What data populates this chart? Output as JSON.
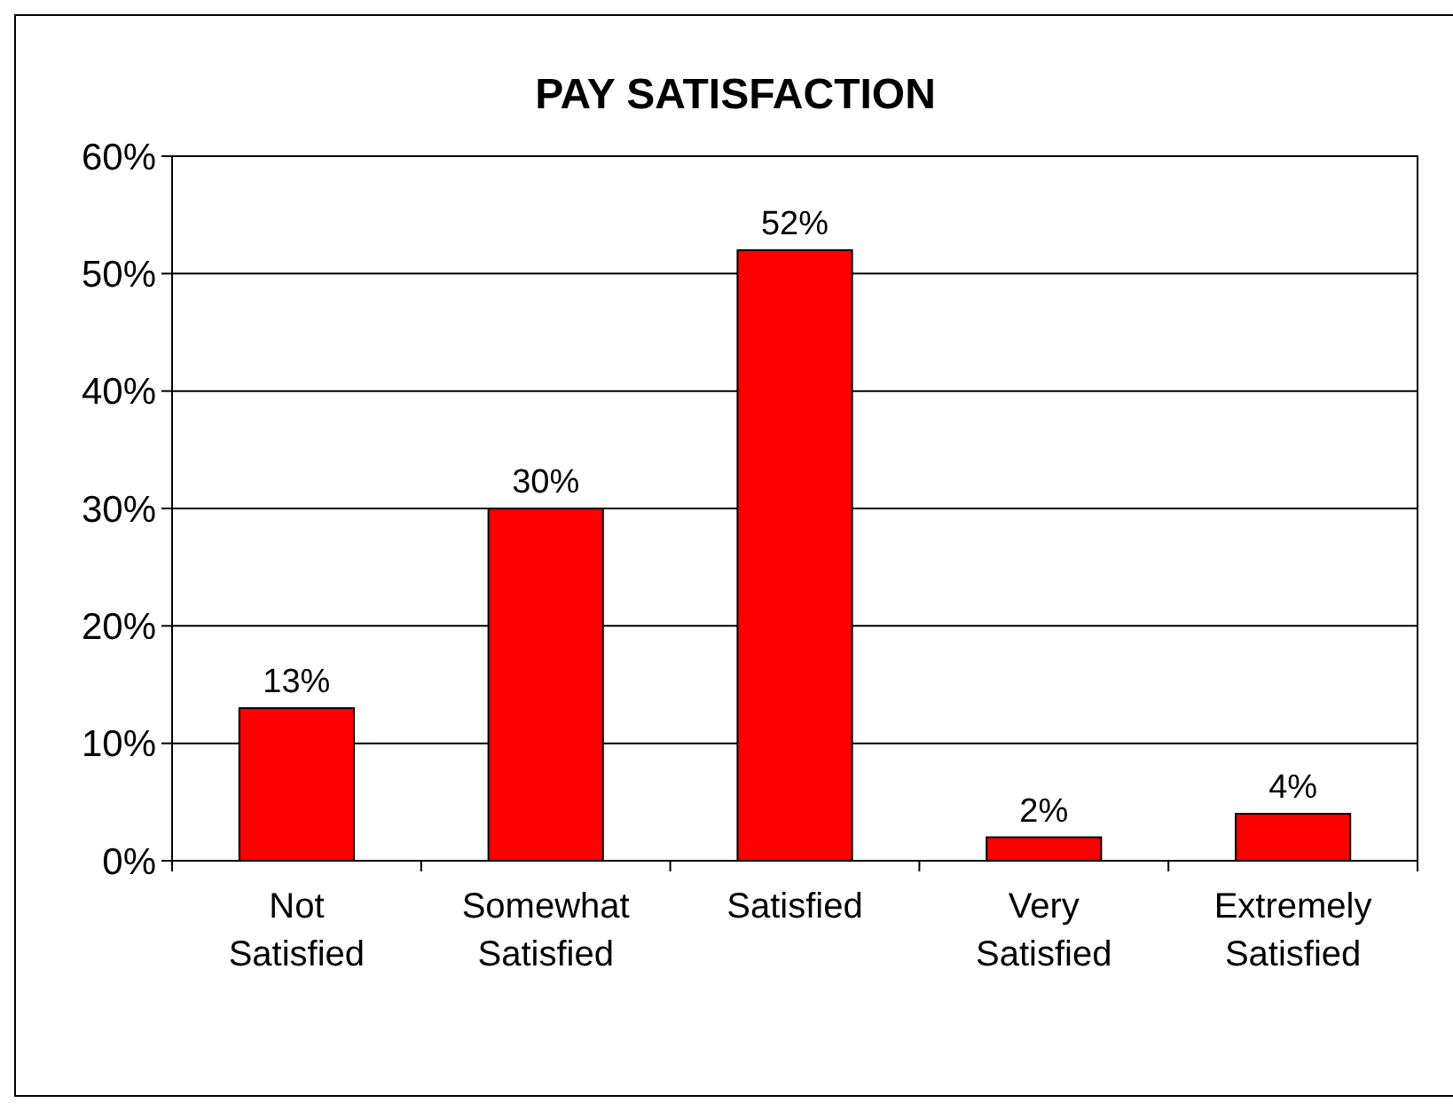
{
  "chart_data": {
    "type": "bar",
    "title": "PAY SATISFACTION",
    "categories": [
      "Not Satisfied",
      "Somewhat Satisfied",
      "Satisfied",
      "Very Satisfied",
      "Extremely Satisfied"
    ],
    "values": [
      13,
      30,
      52,
      2,
      4
    ],
    "color": "#ff0000",
    "value_labels": [
      "13%",
      "30%",
      "52%",
      "2%",
      "4%"
    ],
    "ylim": [
      0,
      60
    ],
    "yticks": [
      {
        "value": 0,
        "label": "0%"
      },
      {
        "value": 10,
        "label": "10%"
      },
      {
        "value": 20,
        "label": "20%"
      },
      {
        "value": 30,
        "label": "30%"
      },
      {
        "value": 40,
        "label": "40%"
      },
      {
        "value": 50,
        "label": "50%"
      },
      {
        "value": 60,
        "label": "60%"
      }
    ],
    "grid": "y"
  }
}
